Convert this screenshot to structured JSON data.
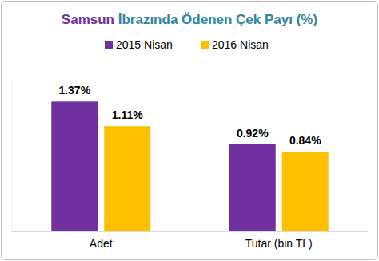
{
  "chart_data": {
    "type": "bar",
    "title": "Samsun İbrazında Ödenen Çek Payı (%)",
    "categories": [
      "Adet",
      "Tutar (bin TL)"
    ],
    "series": [
      {
        "name": "2015 Nisan",
        "color": "#7030a0",
        "values": [
          1.37,
          0.92
        ],
        "value_labels": [
          "1.37%",
          "0.92%"
        ]
      },
      {
        "name": "2016 Nisan",
        "color": "#ffc000",
        "values": [
          1.11,
          0.84
        ],
        "value_labels": [
          "1.11%",
          "0.84%"
        ]
      }
    ],
    "ylim": [
      0,
      1.6
    ],
    "grid": false,
    "legend": "top",
    "data_labels": true,
    "tick_labels": "x"
  }
}
